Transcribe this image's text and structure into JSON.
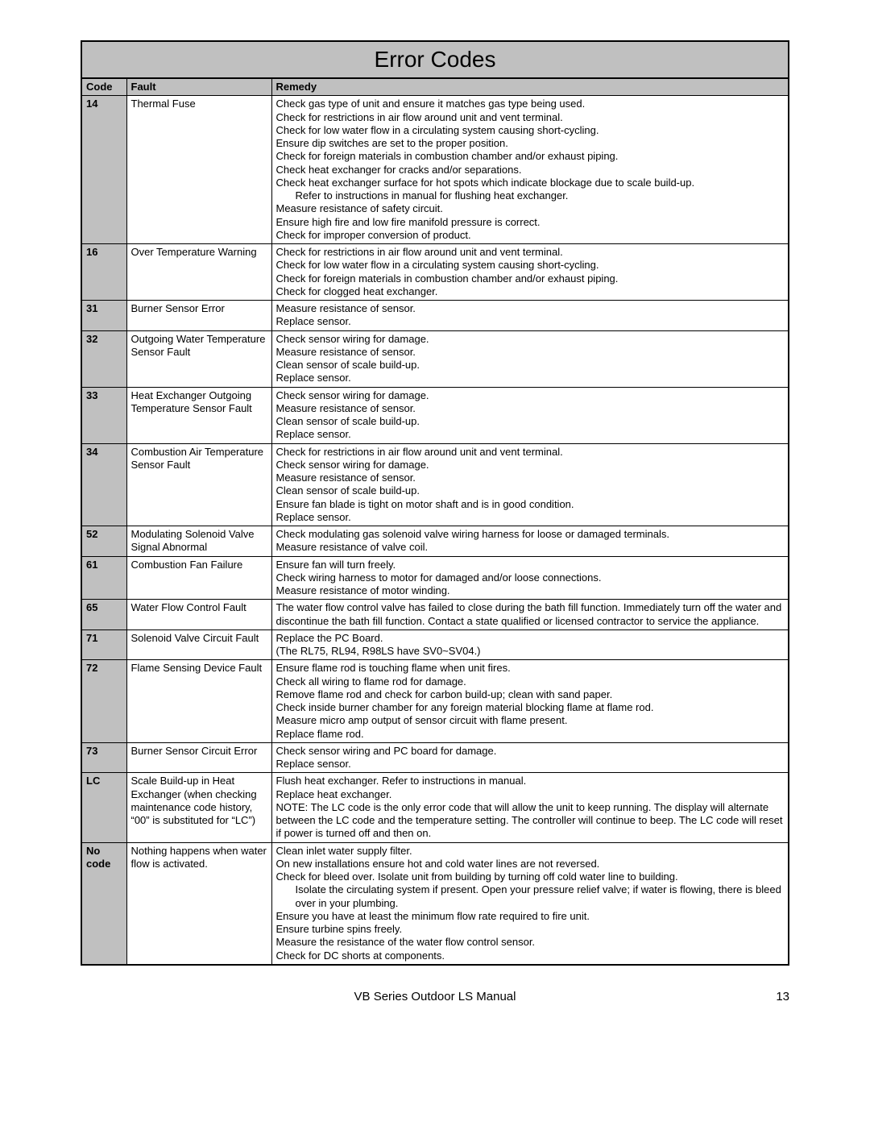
{
  "title": "Error Codes",
  "headers": {
    "code": "Code",
    "fault": "Fault",
    "remedy": "Remedy"
  },
  "rows": [
    {
      "code": "14",
      "fault": "Thermal Fuse",
      "remedy": [
        {
          "t": "Check gas type of unit and ensure it matches gas type being used."
        },
        {
          "t": "Check for restrictions in air flow around unit and vent terminal."
        },
        {
          "t": "Check for low water flow in a circulating system causing short-cycling."
        },
        {
          "t": "Ensure dip switches are set to the proper position."
        },
        {
          "t": "Check for foreign materials in combustion chamber and/or exhaust piping."
        },
        {
          "t": "Check heat exchanger for cracks and/or separations."
        },
        {
          "t": "Check heat exchanger surface for hot spots which indicate blockage due to scale build-up."
        },
        {
          "t": "Refer to instructions in manual for flushing heat exchanger.",
          "indent": true
        },
        {
          "t": "Measure resistance of safety circuit."
        },
        {
          "t": "Ensure high fire and low fire manifold pressure is correct."
        },
        {
          "t": "Check for improper conversion of product."
        }
      ]
    },
    {
      "code": "16",
      "fault": "Over Temperature Warning",
      "remedy": [
        {
          "t": "Check for restrictions in air flow around unit and vent terminal."
        },
        {
          "t": "Check for low water flow in a circulating system causing short-cycling."
        },
        {
          "t": "Check for foreign materials in combustion chamber and/or exhaust piping."
        },
        {
          "t": "Check for clogged heat exchanger."
        }
      ]
    },
    {
      "code": "31",
      "fault": "Burner Sensor Error",
      "remedy": [
        {
          "t": "Measure resistance of sensor."
        },
        {
          "t": "Replace sensor."
        }
      ]
    },
    {
      "code": "32",
      "fault": "Outgoing Water Temperature Sensor Fault",
      "remedy": [
        {
          "t": "Check sensor wiring for damage."
        },
        {
          "t": "Measure resistance of sensor."
        },
        {
          "t": "Clean sensor of scale build-up."
        },
        {
          "t": "Replace sensor."
        }
      ]
    },
    {
      "code": "33",
      "fault": "Heat Exchanger Outgoing Temperature Sensor Fault",
      "remedy": [
        {
          "t": "Check sensor wiring for damage."
        },
        {
          "t": "Measure resistance of sensor."
        },
        {
          "t": "Clean sensor of scale build-up."
        },
        {
          "t": "Replace sensor."
        }
      ]
    },
    {
      "code": "34",
      "fault": "Combustion Air Temperature Sensor Fault",
      "remedy": [
        {
          "t": "Check for restrictions in air flow around unit and vent terminal."
        },
        {
          "t": "Check sensor wiring for damage."
        },
        {
          "t": "Measure resistance of sensor."
        },
        {
          "t": "Clean sensor of scale build-up."
        },
        {
          "t": "Ensure fan blade is tight on motor shaft and is in good condition."
        },
        {
          "t": "Replace sensor."
        }
      ]
    },
    {
      "code": "52",
      "fault": "Modulating Solenoid Valve Signal Abnormal",
      "remedy": [
        {
          "t": "Check modulating gas solenoid valve wiring harness for loose or damaged terminals."
        },
        {
          "t": "Measure resistance of valve coil."
        }
      ]
    },
    {
      "code": "61",
      "fault": "Combustion Fan Failure",
      "remedy": [
        {
          "t": "Ensure fan will turn freely."
        },
        {
          "t": "Check wiring harness to motor for damaged and/or loose connections."
        },
        {
          "t": "Measure resistance of motor winding."
        }
      ]
    },
    {
      "code": "65",
      "fault": "Water Flow Control Fault",
      "remedy": [
        {
          "t": "The water flow control valve has failed to close during the bath fill function.  Immediately turn off the water and discontinue the bath fill function.  Contact a state qualified or licensed contractor to service the appliance."
        }
      ]
    },
    {
      "code": "71",
      "fault": "Solenoid Valve Circuit Fault",
      "remedy": [
        {
          "t": "Replace the PC Board."
        },
        {
          "t": "(The RL75, RL94, R98LS have SV0~SV04.)"
        }
      ]
    },
    {
      "code": "72",
      "fault": "Flame Sensing Device Fault",
      "remedy": [
        {
          "t": "Ensure flame rod is touching flame when unit fires."
        },
        {
          "t": "Check all wiring to flame rod for damage."
        },
        {
          "t": "Remove flame rod and check for carbon build-up; clean with sand paper."
        },
        {
          "t": "Check inside burner chamber for any foreign material blocking flame at flame rod."
        },
        {
          "t": "Measure micro amp output of sensor circuit with flame present."
        },
        {
          "t": "Replace flame rod."
        }
      ]
    },
    {
      "code": "73",
      "fault": "Burner Sensor Circuit Error",
      "remedy": [
        {
          "t": "Check sensor wiring and PC board for damage."
        },
        {
          "t": "Replace sensor."
        }
      ]
    },
    {
      "code": "LC",
      "fault": "Scale Build-up in Heat Exchanger (when checking maintenance code history, “00” is substituted for “LC”)",
      "remedy": [
        {
          "t": "Flush heat exchanger.  Refer to instructions in manual."
        },
        {
          "t": "Replace heat exchanger."
        },
        {
          "t": "NOTE: The LC code is the only error code that will allow the unit to keep running.  The display will alternate between the LC code and the temperature setting.  The controller will continue to beep.  The LC code will reset if power is turned off and then on."
        }
      ]
    },
    {
      "code": "No code",
      "fault": "Nothing happens when water flow is activated.",
      "remedy": [
        {
          "t": "Clean inlet water supply filter."
        },
        {
          "t": "On new installations ensure hot and cold water lines are not reversed."
        },
        {
          "t": "Check for bleed over. Isolate unit from building by turning off cold water line to building."
        },
        {
          "t": "Isolate the circulating system if present.  Open your pressure relief valve; if water is flowing, there is bleed over in your plumbing.",
          "indent": true
        },
        {
          "t": "Ensure you have at least the minimum flow rate required to fire unit."
        },
        {
          "t": "Ensure turbine spins freely."
        },
        {
          "t": "Measure the resistance of the water flow control sensor."
        },
        {
          "t": "Check for DC shorts at components."
        }
      ]
    }
  ],
  "footer": {
    "text": "VB Series Outdoor LS Manual",
    "page": "13"
  }
}
